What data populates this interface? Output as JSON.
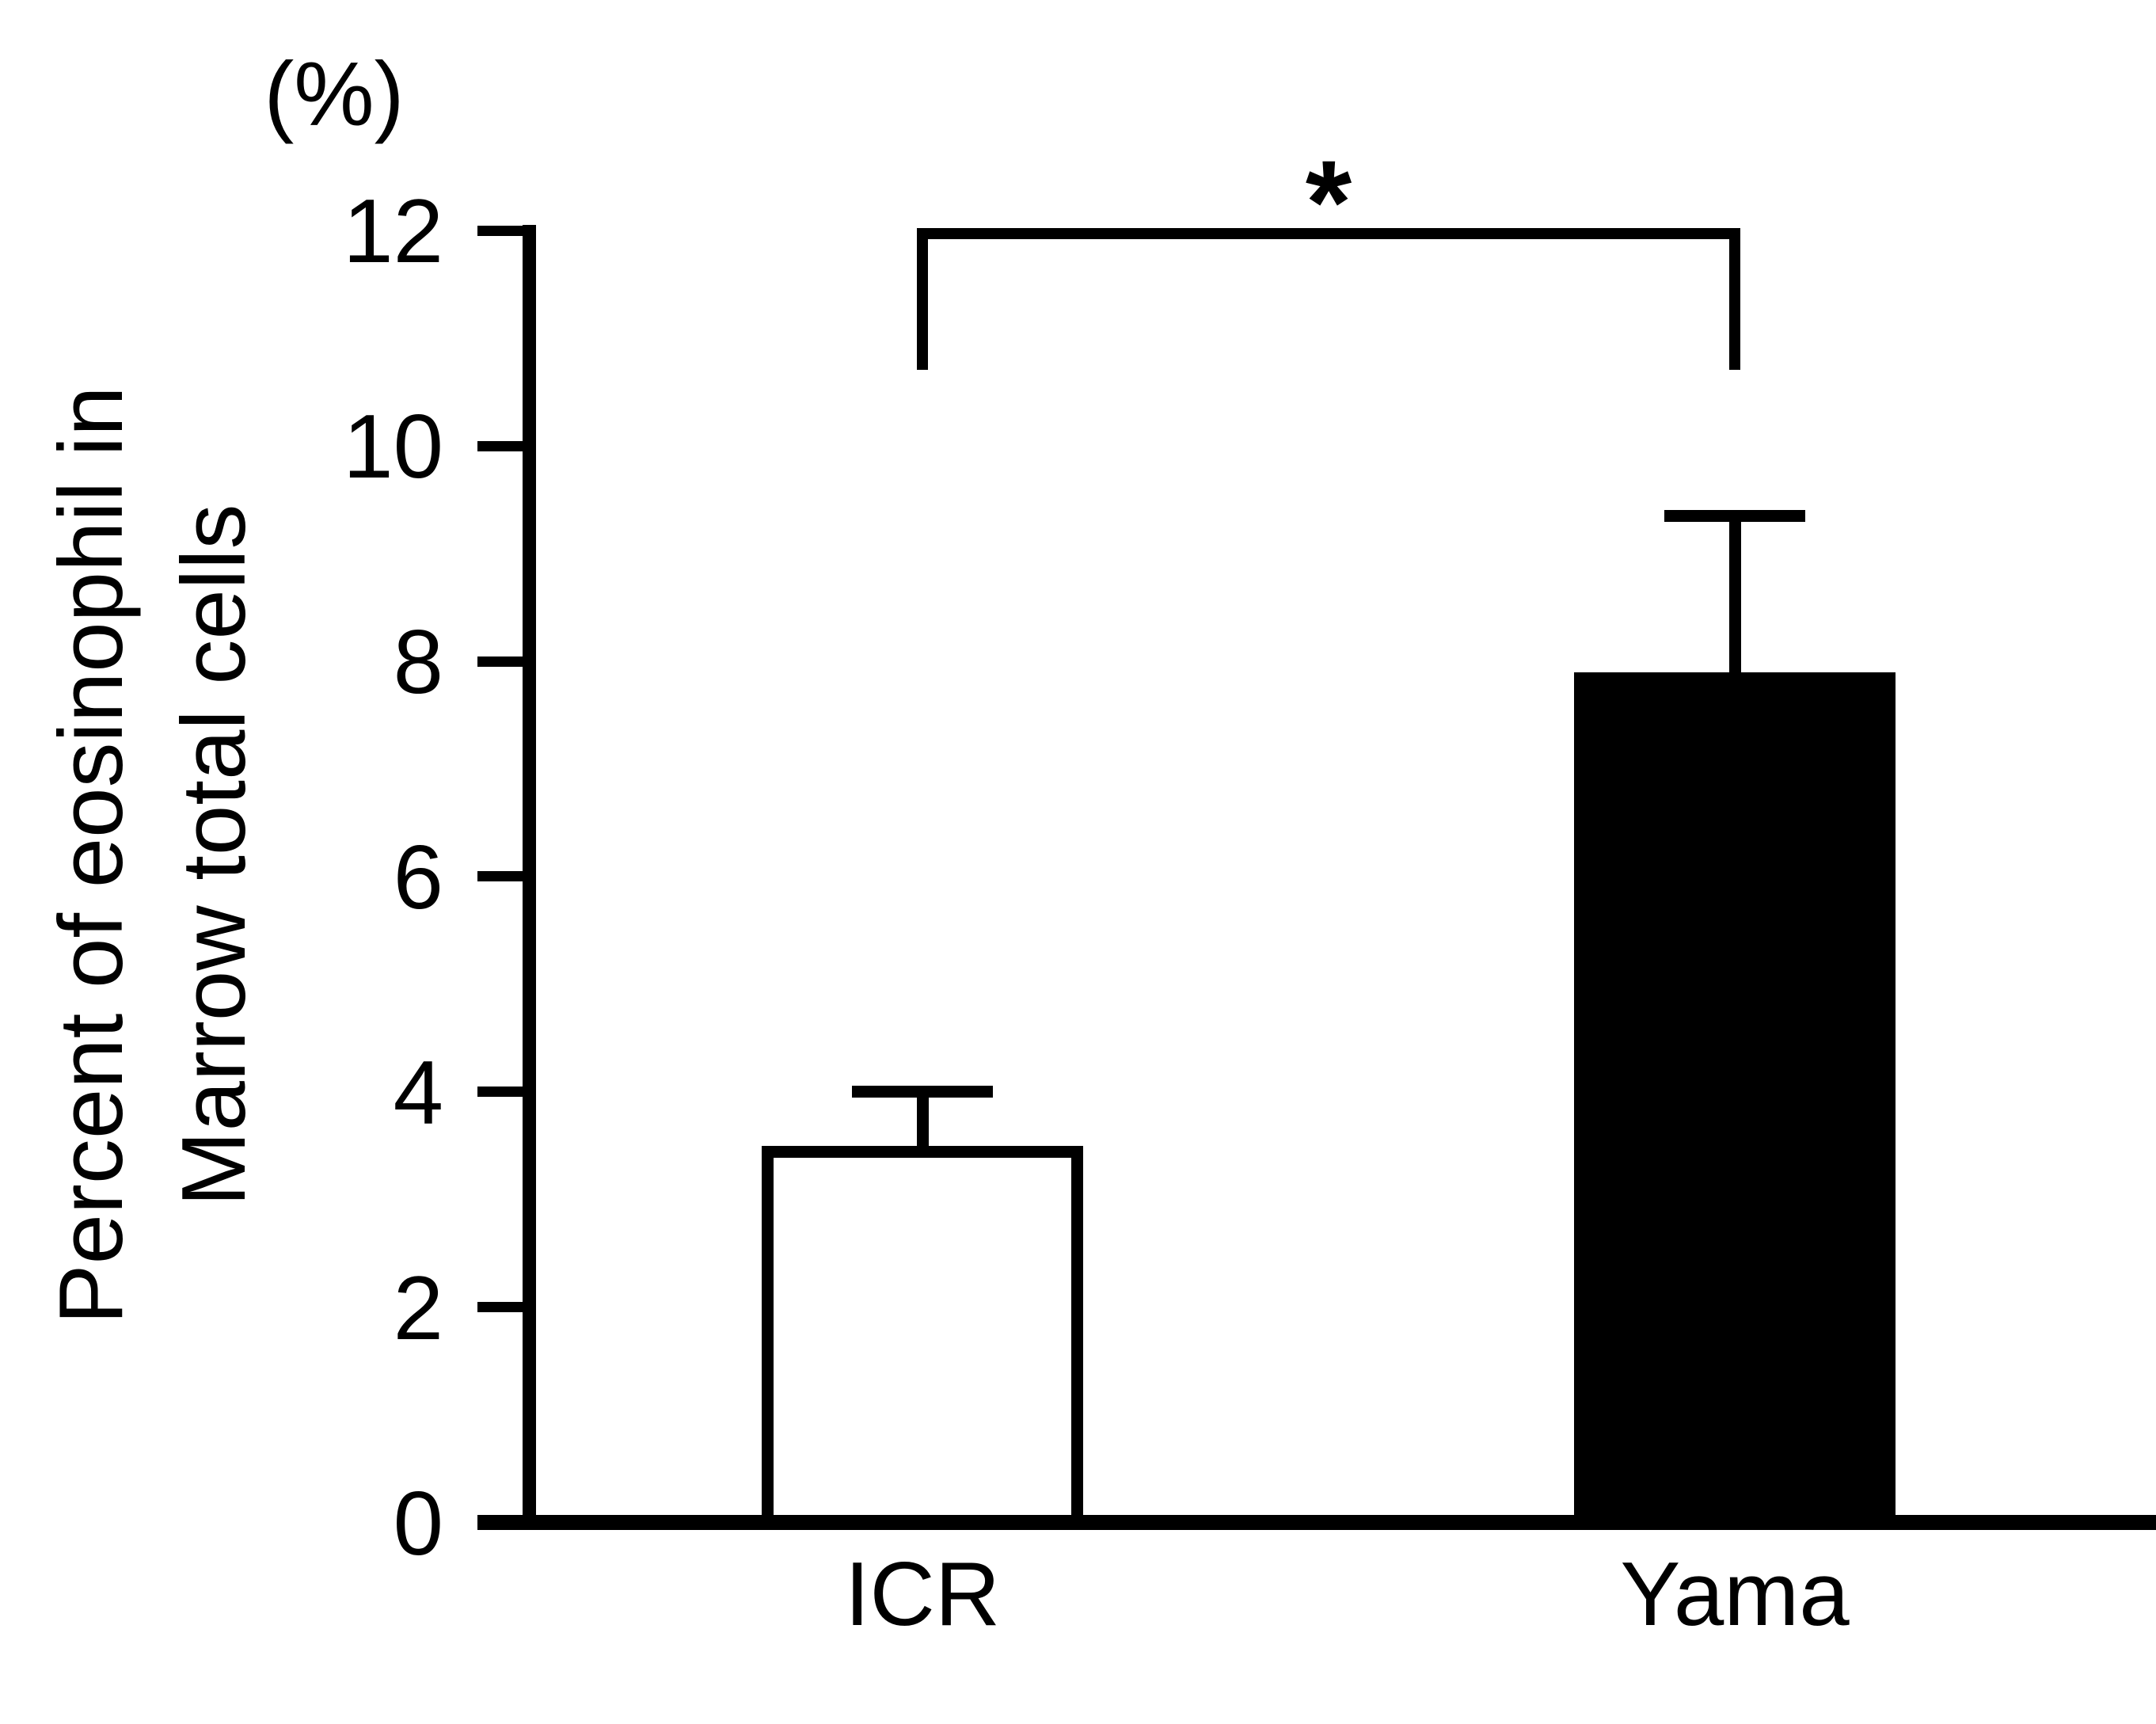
{
  "figure": {
    "unit_label": "(%)",
    "y_axis_label_line1": "Percent of eosinophil in",
    "y_axis_label_line2": "Marrow total cells",
    "significance_marker": "*"
  },
  "chart_data": {
    "type": "bar",
    "title": "",
    "xlabel": "",
    "ylabel": "Percent of eosinophil in Marrow total cells",
    "y_unit": "(%)",
    "categories": [
      "ICR",
      "Yama"
    ],
    "values": [
      3.5,
      7.9
    ],
    "errors_upper": [
      0.5,
      1.45
    ],
    "bar_fills": [
      "#ffffff",
      "#000000"
    ],
    "bar_outline": "#000000",
    "ylim": [
      0,
      12
    ],
    "yticks": [
      0,
      2,
      4,
      6,
      8,
      10,
      12
    ],
    "grid": false,
    "legend": false,
    "significance": {
      "marker": "*",
      "between": [
        "ICR",
        "Yama"
      ]
    }
  },
  "colors": {
    "ink": "#000000",
    "background": "#ffffff"
  }
}
